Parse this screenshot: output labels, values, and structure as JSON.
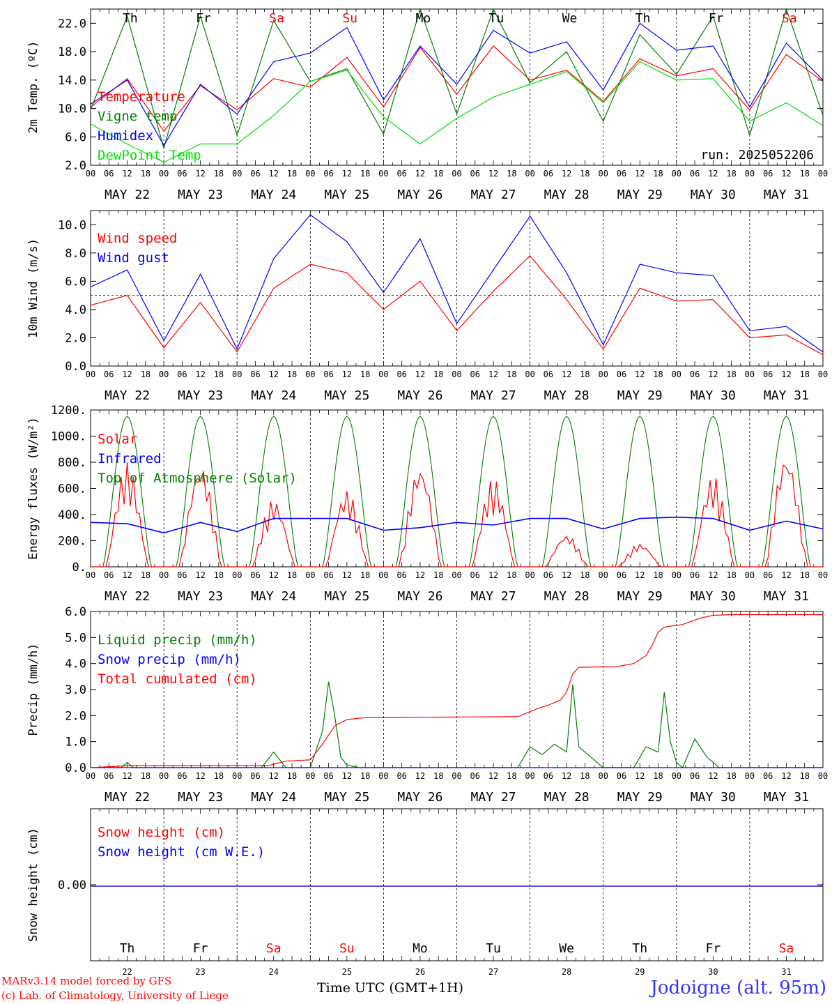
{
  "meta": {
    "credit_model": "MARv3.14 model forced by GFS",
    "credit_lab": "(c) Lab. of Climatology, University of Liege",
    "station": "Jodoigne (alt. 95m)",
    "x_title": "Time UTC (GMT+1H)",
    "run_label": "run: 2025052206"
  },
  "days": [
    {
      "abbr": "Th",
      "date_label": "MAY 22",
      "day_num": "22",
      "weekend": false
    },
    {
      "abbr": "Fr",
      "date_label": "MAY 23",
      "day_num": "23",
      "weekend": false
    },
    {
      "abbr": "Sa",
      "date_label": "MAY 24",
      "day_num": "24",
      "weekend": true
    },
    {
      "abbr": "Su",
      "date_label": "MAY 25",
      "day_num": "25",
      "weekend": true
    },
    {
      "abbr": "Mo",
      "date_label": "MAY 26",
      "day_num": "26",
      "weekend": false
    },
    {
      "abbr": "Tu",
      "date_label": "MAY 27",
      "day_num": "27",
      "weekend": false
    },
    {
      "abbr": "We",
      "date_label": "MAY 28",
      "day_num": "28",
      "weekend": false
    },
    {
      "abbr": "Th",
      "date_label": "MAY 29",
      "day_num": "29",
      "weekend": false
    },
    {
      "abbr": "Fr",
      "date_label": "MAY 30",
      "day_num": "30",
      "weekend": false
    },
    {
      "abbr": "Sa",
      "date_label": "MAY 31",
      "day_num": "31",
      "weekend": true
    }
  ],
  "hour_ticks": [
    "00",
    "06",
    "12",
    "18"
  ],
  "colors": {
    "red": "#ff0000",
    "green": "#008000",
    "blue": "#0000ff",
    "light_green": "#00e000",
    "weekend": "#ff0000"
  },
  "chart_data": [
    {
      "id": "temperature",
      "type": "line",
      "ylabel": "2m Temp. (ºC)",
      "ylim": [
        2,
        24
      ],
      "yticks": [
        "2.0",
        "6.0",
        "10.0",
        "14.0",
        "18.0",
        "22.0"
      ],
      "ytick_values": [
        2,
        6,
        10,
        14,
        18,
        22
      ],
      "x_hours": [
        0,
        12,
        24,
        36,
        48,
        60,
        72,
        84,
        96,
        108,
        120,
        132,
        144,
        156,
        168,
        180,
        192,
        204,
        216,
        228,
        240
      ],
      "series": [
        {
          "name": "Temperature",
          "color": "#ff0000",
          "values": [
            10.2,
            14.2,
            6.8,
            13.2,
            9.8,
            14.2,
            13.0,
            17.2,
            10.2,
            18.6,
            12.0,
            18.8,
            14.0,
            15.4,
            11.0,
            17.0,
            14.6,
            15.6,
            9.8,
            17.6,
            13.8
          ]
        },
        {
          "name": "Vigne temp",
          "color": "#008000",
          "values": [
            9.8,
            23.0,
            4.4,
            23.0,
            6.2,
            22.4,
            13.8,
            15.6,
            6.4,
            24.0,
            9.2,
            24.0,
            13.6,
            18.0,
            8.2,
            20.4,
            14.8,
            23.0,
            6.2,
            24.0,
            9.0
          ]
        },
        {
          "name": "Humidex",
          "color": "#0000ff",
          "values": [
            10.6,
            14.0,
            4.8,
            13.4,
            9.2,
            16.6,
            17.8,
            21.4,
            11.2,
            18.8,
            13.4,
            21.0,
            17.8,
            19.4,
            12.6,
            22.0,
            18.2,
            18.8,
            10.2,
            19.2,
            14.0
          ]
        },
        {
          "name": "DewPoint Temp",
          "color": "#00e000",
          "values": [
            7.8,
            5.0,
            2.4,
            5.0,
            5.0,
            9.0,
            13.8,
            15.4,
            8.8,
            5.0,
            8.6,
            11.6,
            13.4,
            15.2,
            10.8,
            16.6,
            14.0,
            14.2,
            8.2,
            10.8,
            7.6
          ]
        }
      ]
    },
    {
      "id": "wind",
      "type": "line",
      "ylabel": "10m Wind (m/s)",
      "ylim": [
        0,
        11
      ],
      "yticks": [
        "0.0",
        "2.0",
        "4.0",
        "6.0",
        "8.0",
        "10.0"
      ],
      "ytick_values": [
        0,
        2,
        4,
        6,
        8,
        10
      ],
      "reference_line": 5,
      "x_hours": [
        0,
        12,
        24,
        36,
        48,
        60,
        72,
        84,
        96,
        108,
        120,
        132,
        144,
        156,
        168,
        180,
        192,
        204,
        216,
        228,
        240
      ],
      "series": [
        {
          "name": "Wind speed",
          "color": "#ff0000",
          "values": [
            4.3,
            5.0,
            1.3,
            4.5,
            1.0,
            5.5,
            7.2,
            6.6,
            4.0,
            6.0,
            2.5,
            5.3,
            7.8,
            4.7,
            1.2,
            5.5,
            4.6,
            4.7,
            2.0,
            2.2,
            0.8
          ]
        },
        {
          "name": "Wind gust",
          "color": "#0000ff",
          "values": [
            5.6,
            6.8,
            1.8,
            6.5,
            1.2,
            7.6,
            10.7,
            8.8,
            5.2,
            9.0,
            3.0,
            6.8,
            10.6,
            6.6,
            1.5,
            7.2,
            6.6,
            6.4,
            2.5,
            2.8,
            1.0
          ]
        }
      ]
    },
    {
      "id": "energy",
      "type": "line",
      "ylabel": "Energy fluxes (W/m²)",
      "ylim": [
        0,
        1200
      ],
      "yticks": [
        "0.",
        "200.",
        "400.",
        "600.",
        "800.",
        "1000.",
        "1200."
      ],
      "ytick_values": [
        0,
        200,
        400,
        600,
        800,
        1000,
        1200
      ],
      "series": [
        {
          "name": "Solar",
          "color": "#ff0000",
          "daily_peak_hour": 13,
          "daily_peak": [
            800,
            800,
            520,
            590,
            790,
            680,
            250,
            180,
            700,
            880
          ]
        },
        {
          "name": "Infrared",
          "color": "#0000ff",
          "values": [
            340,
            330,
            260,
            340,
            270,
            370,
            370,
            370,
            280,
            300,
            340,
            320,
            370,
            370,
            290,
            370,
            380,
            370,
            280,
            350,
            290
          ]
        },
        {
          "name": "Top of Atmosphere (Solar)",
          "color": "#008000",
          "daily_peak": 1150
        }
      ]
    },
    {
      "id": "precip",
      "type": "line",
      "ylabel": "Precip (mm/h)",
      "ylim": [
        0,
        6
      ],
      "yticks": [
        "0.0",
        "1.0",
        "2.0",
        "3.0",
        "4.0",
        "5.0",
        "6.0"
      ],
      "ytick_values": [
        0,
        1,
        2,
        3,
        4,
        5,
        6
      ],
      "series": [
        {
          "name": "Liquid precip (mm/h)",
          "color": "#008000",
          "x_hours": [
            0,
            10,
            12,
            14,
            56,
            60,
            62,
            64,
            72,
            76,
            78,
            80,
            82,
            84,
            88,
            96,
            140,
            144,
            148,
            152,
            156,
            158,
            160,
            168,
            178,
            182,
            186,
            188,
            190,
            192,
            194,
            198,
            202,
            206,
            210,
            214,
            240
          ],
          "values": [
            0,
            0,
            0.2,
            0,
            0,
            0.6,
            0.3,
            0,
            0,
            1.4,
            3.3,
            2.0,
            0.4,
            0.1,
            0,
            0,
            0,
            0.8,
            0.5,
            0.9,
            0.6,
            3.2,
            0.8,
            0,
            0,
            0.8,
            0.6,
            2.9,
            1.0,
            0.2,
            0,
            1.1,
            0.4,
            0,
            0,
            0,
            0
          ]
        },
        {
          "name": "Snow precip (mm/h)",
          "color": "#0000ff",
          "x_hours": [
            0,
            240
          ],
          "values": [
            0,
            0
          ]
        },
        {
          "name": "Total cumulated (cm)",
          "color": "#ff0000",
          "x_hours": [
            0,
            12,
            58,
            64,
            72,
            76,
            80,
            84,
            90,
            114,
            140,
            142,
            146,
            150,
            154,
            156,
            158,
            160,
            166,
            172,
            178,
            182,
            184,
            186,
            188,
            194,
            200,
            204,
            210,
            216,
            240
          ],
          "values": [
            0,
            0.07,
            0.07,
            0.25,
            0.3,
            0.9,
            1.6,
            1.85,
            1.92,
            1.94,
            1.96,
            2.05,
            2.25,
            2.4,
            2.6,
            2.9,
            3.6,
            3.85,
            3.87,
            3.87,
            4.0,
            4.3,
            4.7,
            5.2,
            5.4,
            5.5,
            5.75,
            5.85,
            5.88,
            5.88,
            5.88
          ]
        }
      ]
    },
    {
      "id": "snow",
      "type": "line",
      "ylabel": "Snow height (cm)",
      "yticks": [
        "0.00"
      ],
      "series": [
        {
          "name": "Snow height (cm)",
          "color": "#ff0000",
          "x_hours": [
            0,
            240
          ],
          "values": [
            0,
            0
          ]
        },
        {
          "name": "Snow height (cm W.E.)",
          "color": "#0000ff",
          "x_hours": [
            0,
            240
          ],
          "values": [
            0,
            0
          ]
        }
      ]
    }
  ]
}
